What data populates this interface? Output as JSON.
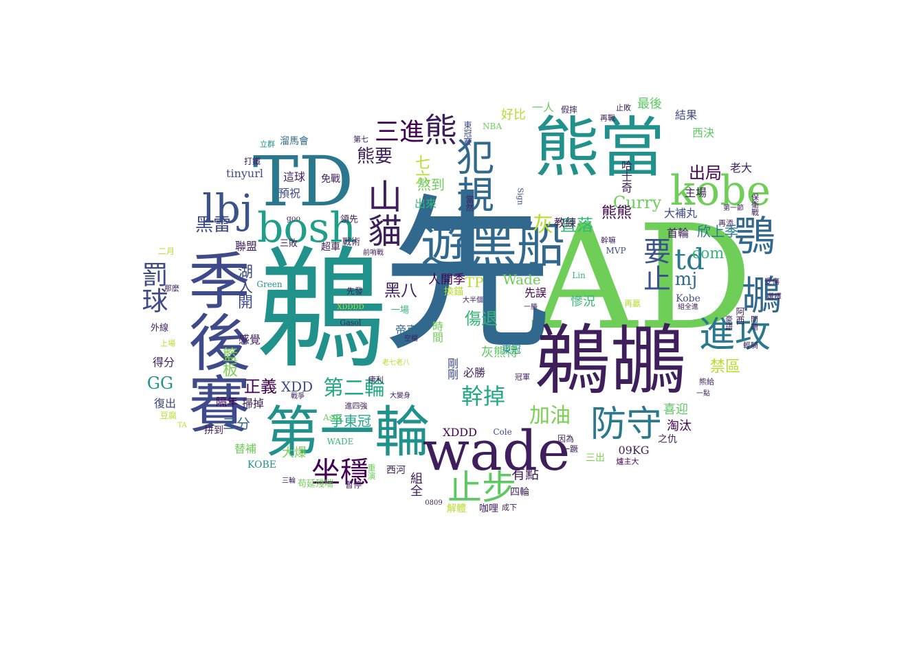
{
  "words": [
    {
      "text": "鵜",
      "c": "#21918c"
    },
    {
      "text": "AD",
      "c": "#6ece58"
    },
    {
      "text": "先",
      "c": "#31688e"
    },
    {
      "text": "鵜鶘",
      "c": "#3e1f5c"
    },
    {
      "text": "熊當",
      "c": "#21918c"
    },
    {
      "text": "TD",
      "c": "#2a788e"
    },
    {
      "text": "季後賽",
      "c": "#3e4a89"
    },
    {
      "text": "第一輪",
      "c": "#21918c"
    },
    {
      "text": "wade",
      "c": "#3e1f5c"
    },
    {
      "text": "遊黑船",
      "c": "#31688e"
    },
    {
      "text": "犯規",
      "c": "#31688e"
    },
    {
      "text": "kobe",
      "c": "#6ece58"
    },
    {
      "text": "bosh",
      "c": "#1f9e89"
    },
    {
      "text": "lbj",
      "c": "#3b528b"
    },
    {
      "text": "山貓",
      "c": "#3e1f5c"
    },
    {
      "text": "熊",
      "c": "#3e1f5c"
    },
    {
      "text": "鶚",
      "c": "#31688e"
    },
    {
      "text": "鶘",
      "c": "#31688e"
    },
    {
      "text": "進攻",
      "c": "#2a788e"
    },
    {
      "text": "防守",
      "c": "#2a788e"
    },
    {
      "text": "止步",
      "c": "#5ec962"
    },
    {
      "text": "坐穩",
      "c": "#440154"
    },
    {
      "text": "三進",
      "c": "#440154"
    },
    {
      "text": "td",
      "c": "#2a788e"
    },
    {
      "text": "要止",
      "c": "#3b528b"
    },
    {
      "text": "罰球",
      "c": "#3e4a89"
    },
    {
      "text": "幹掉",
      "c": "#22a884"
    },
    {
      "text": "第二輪",
      "c": "#22a884"
    },
    {
      "text": "加油",
      "c": "#7ad151"
    },
    {
      "text": "黑雷",
      "c": "#3e4a89"
    },
    {
      "text": "熊要",
      "c": "#3e1f5c"
    },
    {
      "text": "直落",
      "c": "#35b779"
    },
    {
      "text": "灰",
      "c": "#b5de2b"
    },
    {
      "text": "Curry",
      "c": "#6ece58"
    },
    {
      "text": "mj",
      "c": "#31688e"
    },
    {
      "text": "出局",
      "c": "#440154"
    },
    {
      "text": "傷退",
      "c": "#35b779"
    },
    {
      "text": "黑八",
      "c": "#3e1f5c"
    },
    {
      "text": "GG",
      "c": "#21918c"
    },
    {
      "text": "正義",
      "c": "#440154"
    },
    {
      "text": "XDD",
      "c": "#3e4a89"
    },
    {
      "text": "籃板",
      "c": "#7ad151"
    },
    {
      "text": "湖人開",
      "c": "#3e4a89"
    },
    {
      "text": "七六",
      "c": "#b5de2b"
    },
    {
      "text": "熬到",
      "c": "#6ece58"
    },
    {
      "text": "禁區",
      "c": "#b5de2b"
    },
    {
      "text": "熊熊",
      "c": "#440154"
    },
    {
      "text": "欣上季",
      "c": "#2a788e"
    },
    {
      "text": "com",
      "c": "#35b779"
    },
    {
      "text": "Wade",
      "c": "#6ece58"
    },
    {
      "text": "TP",
      "c": "#b5de2b"
    },
    {
      "text": "有點",
      "c": "#3e1f5c"
    },
    {
      "text": "爭東冠",
      "c": "#22a884"
    },
    {
      "text": "三分",
      "c": "#31688e"
    },
    {
      "text": "大爆",
      "c": "#7ad151"
    },
    {
      "text": "XDDD",
      "c": "#440154"
    },
    {
      "text": "09KG",
      "c": "#3e1f5c"
    },
    {
      "text": "淘汰",
      "c": "#440154"
    },
    {
      "text": "喜迎",
      "c": "#5ec962"
    },
    {
      "text": "好比",
      "c": "#b5de2b"
    },
    {
      "text": "最後",
      "c": "#5ec962"
    },
    {
      "text": "結果",
      "c": "#3e4a89"
    },
    {
      "text": "一人",
      "c": "#6ece58"
    },
    {
      "text": "西決",
      "c": "#5ec962"
    },
    {
      "text": "老大",
      "c": "#3e1f5c"
    },
    {
      "text": "主場",
      "c": "#3e1f5c"
    },
    {
      "text": "哈士奇",
      "c": "#3e1f5c"
    },
    {
      "text": "大補丸",
      "c": "#3e4a89"
    },
    {
      "text": "首輪",
      "c": "#3e1f5c"
    },
    {
      "text": "教練",
      "c": "#3e1f5c"
    },
    {
      "text": "人開季",
      "c": "#440154"
    },
    {
      "text": "先誤",
      "c": "#440154"
    },
    {
      "text": "慘況",
      "c": "#35b779"
    },
    {
      "text": "灰熊得",
      "c": "#5ec962"
    },
    {
      "text": "感覺",
      "c": "#3e1f5c"
    },
    {
      "text": "得分",
      "c": "#3e1f5c"
    },
    {
      "text": "復出",
      "c": "#3e4a89"
    },
    {
      "text": "隔年",
      "c": "#440154"
    },
    {
      "text": "掃掉",
      "c": "#3e1f5c"
    },
    {
      "text": "聯盟",
      "c": "#3e1f5c"
    },
    {
      "text": "替補",
      "c": "#6ece58"
    },
    {
      "text": "KOBE",
      "c": "#21918c"
    },
    {
      "text": "拼到",
      "c": "#3e1f5c"
    },
    {
      "text": "tinyurl",
      "c": "#3e4a89"
    },
    {
      "text": "這球",
      "c": "#3e1f5c"
    },
    {
      "text": "預祝",
      "c": "#3e4a89"
    },
    {
      "text": "免戰",
      "c": "#3e1f5c"
    },
    {
      "text": "打鐵",
      "c": "#3e1f5c"
    },
    {
      "text": "溜馬會",
      "c": "#31688e"
    },
    {
      "text": "立群",
      "c": "#21918c"
    },
    {
      "text": "Green",
      "c": "#21918c"
    },
    {
      "text": "超車",
      "c": "#3e1f5c"
    },
    {
      "text": "三敗",
      "c": "#3e1f5c"
    },
    {
      "text": "戰術",
      "c": "#3e1f5c"
    },
    {
      "text": "領先",
      "c": "#3e1f5c"
    },
    {
      "text": "出來",
      "c": "#35b779"
    },
    {
      "text": "剛剛",
      "c": "#3e4a89"
    },
    {
      "text": "必勝",
      "c": "#3e1f5c"
    },
    {
      "text": "帝克",
      "c": "#31688e"
    },
    {
      "text": "時間",
      "c": "#6ece58"
    },
    {
      "text": "東冠",
      "c": "#21918c"
    },
    {
      "text": "四輪",
      "c": "#3e1f5c"
    },
    {
      "text": "咖哩",
      "c": "#3e1f5c"
    },
    {
      "text": "解體",
      "c": "#b5de2b"
    },
    {
      "text": "Kobe",
      "c": "#3e4a89"
    },
    {
      "text": "MVP",
      "c": "#3e4a89"
    },
    {
      "text": "三出",
      "c": "#7ad151"
    },
    {
      "text": "之仇",
      "c": "#3e1f5c"
    },
    {
      "text": "Cole",
      "c": "#3e4a89"
    },
    {
      "text": "WADE",
      "c": "#35b779"
    },
    {
      "text": "Asik",
      "c": "#6ece58"
    },
    {
      "text": "XDDDD",
      "c": "#b5de2b"
    },
    {
      "text": "Gasol",
      "c": "#3e1f5c"
    },
    {
      "text": "先發",
      "c": "#3e1f5c"
    },
    {
      "text": "換錨",
      "c": "#b5de2b"
    },
    {
      "text": "組全",
      "c": "#3e1f5c"
    },
    {
      "text": "西河",
      "c": "#3e1f5c"
    },
    {
      "text": "暫停",
      "c": "#3e1f5c"
    },
    {
      "text": "苟延殘喘",
      "c": "#6ece58"
    },
    {
      "text": "重演",
      "c": "#6ece58"
    },
    {
      "text": "成下",
      "c": "#3e1f5c"
    },
    {
      "text": "0809",
      "c": "#3e1f5c"
    },
    {
      "text": "因為",
      "c": "#3e1f5c"
    },
    {
      "text": "一蹶",
      "c": "#3e1f5c"
    },
    {
      "text": "爐主大",
      "c": "#440154"
    },
    {
      "text": "Lin",
      "c": "#35b779"
    },
    {
      "text": "NBA",
      "c": "#6ece58"
    },
    {
      "text": "當然",
      "c": "#3e1f5c"
    },
    {
      "text": "假摔",
      "c": "#3e1f5c"
    },
    {
      "text": "再戰",
      "c": "#3e1f5c"
    },
    {
      "text": "止敗",
      "c": "#3e1f5c"
    },
    {
      "text": "再添",
      "c": "#3e1f5c"
    },
    {
      "text": "豆腐",
      "c": "#b5de2b"
    },
    {
      "text": "上場",
      "c": "#b5de2b"
    },
    {
      "text": "外線",
      "c": "#3e1f5c"
    },
    {
      "text": "那麼",
      "c": "#3e1f5c"
    },
    {
      "text": "二月",
      "c": "#b5de2b"
    },
    {
      "text": "三輪",
      "c": "#3e1f5c"
    },
    {
      "text": "TA",
      "c": "#b5de2b"
    },
    {
      "text": "goo",
      "c": "#3e1f5c"
    },
    {
      "text": "一場",
      "c": "#35b779"
    },
    {
      "text": "第七",
      "c": "#3e1f5c"
    },
    {
      "text": "東冠賽",
      "c": "#3e4a89"
    },
    {
      "text": "Sign",
      "c": "#3e4a89"
    },
    {
      "text": "選擇",
      "c": "#3e1f5c"
    },
    {
      "text": "受傷",
      "c": "#3e1f5c"
    },
    {
      "text": "輕騎",
      "c": "#3e1f5c"
    },
    {
      "text": "問題",
      "c": "#3e1f5c"
    },
    {
      "text": "阿西",
      "c": "#3e1f5c"
    },
    {
      "text": "豪語",
      "c": "#3e1f5c"
    },
    {
      "text": "一點",
      "c": "#3e1f5c"
    },
    {
      "text": "熊給",
      "c": "#3e1f5c"
    },
    {
      "text": "冠軍",
      "c": "#3e1f5c"
    },
    {
      "text": "再贏",
      "c": "#b5de2b"
    },
    {
      "text": "幹嘛",
      "c": "#3e1f5c"
    },
    {
      "text": "老七老八",
      "c": "#b5de2b"
    },
    {
      "text": "康利",
      "c": "#3e1f5c"
    },
    {
      "text": "大變身",
      "c": "#3e1f5c"
    },
    {
      "text": "進四強",
      "c": "#3e1f5c"
    },
    {
      "text": "戰爭",
      "c": "#3e1f5c"
    },
    {
      "text": "大半個",
      "c": "#3e1f5c"
    },
    {
      "text": "空檔",
      "c": "#3e1f5c"
    },
    {
      "text": "組全進",
      "c": "#3e1f5c"
    },
    {
      "text": "一勝",
      "c": "#3e1f5c"
    },
    {
      "text": "前哨戰",
      "c": "#3e1f5c"
    },
    {
      "text": "保衛戰",
      "c": "#3e1f5c"
    },
    {
      "text": "第一節",
      "c": "#3e1f5c"
    }
  ]
}
